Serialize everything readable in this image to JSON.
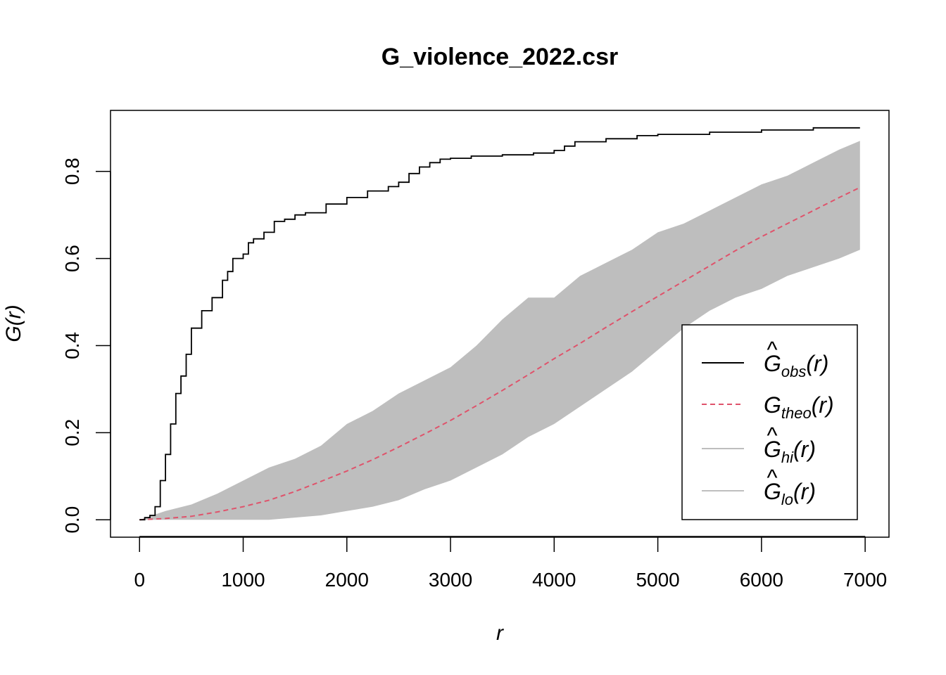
{
  "chart_data": {
    "type": "line",
    "title": "G_violence_2022.csr",
    "xlabel": "r",
    "ylabel": "G(r)",
    "xlim": [
      -280,
      7230
    ],
    "ylim": [
      -0.04,
      0.94
    ],
    "x_ticks": [
      0,
      1000,
      2000,
      3000,
      4000,
      5000,
      6000,
      7000
    ],
    "x_tick_labels": [
      "0",
      "1000",
      "2000",
      "3000",
      "4000",
      "5000",
      "6000",
      "7000"
    ],
    "y_ticks": [
      0.0,
      0.2,
      0.4,
      0.6,
      0.8
    ],
    "y_tick_labels": [
      "0.0",
      "0.2",
      "0.4",
      "0.6",
      "0.8"
    ],
    "grid": false,
    "legend_position": "bottom-right",
    "colors": {
      "obs": "#000000",
      "theo": "#DF536B",
      "envelope": "#BEBEBE"
    },
    "legend": [
      {
        "key": "obs",
        "base": "G",
        "hat": true,
        "sub": "obs",
        "arg": "(r)",
        "color": "#000000",
        "dash": ""
      },
      {
        "key": "theo",
        "base": "G",
        "hat": false,
        "sub": "theo",
        "arg": "(r)",
        "color": "#DF536B",
        "dash": "9,6"
      },
      {
        "key": "hi",
        "base": "G",
        "hat": true,
        "sub": "hi",
        "arg": "(r)",
        "color": "#BEBEBE",
        "dash": ""
      },
      {
        "key": "lo",
        "base": "G",
        "hat": true,
        "sub": "lo",
        "arg": "(r)",
        "color": "#BEBEBE",
        "dash": ""
      }
    ],
    "series": [
      {
        "name": "obs",
        "x": [
          0,
          50,
          100,
          150,
          200,
          250,
          300,
          350,
          400,
          450,
          500,
          600,
          700,
          800,
          850,
          900,
          1000,
          1050,
          1100,
          1200,
          1300,
          1400,
          1500,
          1600,
          1800,
          2000,
          2200,
          2400,
          2500,
          2600,
          2700,
          2800,
          2900,
          3000,
          3200,
          3500,
          3800,
          4000,
          4100,
          4200,
          4500,
          4800,
          5000,
          5500,
          6000,
          6500,
          6950
        ],
        "y": [
          0.0,
          0.005,
          0.01,
          0.03,
          0.09,
          0.15,
          0.22,
          0.29,
          0.33,
          0.38,
          0.44,
          0.48,
          0.51,
          0.55,
          0.57,
          0.6,
          0.61,
          0.636,
          0.645,
          0.66,
          0.685,
          0.69,
          0.7,
          0.705,
          0.725,
          0.74,
          0.755,
          0.765,
          0.775,
          0.795,
          0.81,
          0.82,
          0.828,
          0.83,
          0.835,
          0.838,
          0.842,
          0.848,
          0.858,
          0.868,
          0.875,
          0.882,
          0.885,
          0.89,
          0.895,
          0.9,
          0.9
        ]
      },
      {
        "name": "theo",
        "x": [
          0,
          250,
          500,
          750,
          1000,
          1250,
          1500,
          1750,
          2000,
          2250,
          2500,
          2750,
          3000,
          3250,
          3500,
          3750,
          4000,
          4250,
          4500,
          4750,
          5000,
          5250,
          5500,
          5750,
          6000,
          6250,
          6500,
          6750,
          6950
        ],
        "y": [
          0.0,
          0.003,
          0.008,
          0.018,
          0.03,
          0.045,
          0.065,
          0.088,
          0.112,
          0.138,
          0.167,
          0.197,
          0.228,
          0.262,
          0.297,
          0.333,
          0.37,
          0.405,
          0.442,
          0.478,
          0.513,
          0.548,
          0.583,
          0.618,
          0.65,
          0.68,
          0.71,
          0.74,
          0.763
        ]
      },
      {
        "name": "hi",
        "x": [
          0,
          250,
          500,
          750,
          1000,
          1250,
          1500,
          1750,
          2000,
          2250,
          2500,
          2750,
          3000,
          3250,
          3500,
          3750,
          4000,
          4250,
          4500,
          4750,
          5000,
          5250,
          5500,
          5750,
          6000,
          6250,
          6500,
          6750,
          6950
        ],
        "y": [
          0.0,
          0.02,
          0.035,
          0.06,
          0.09,
          0.12,
          0.14,
          0.17,
          0.22,
          0.25,
          0.29,
          0.32,
          0.35,
          0.4,
          0.46,
          0.51,
          0.51,
          0.56,
          0.59,
          0.62,
          0.66,
          0.68,
          0.71,
          0.74,
          0.77,
          0.79,
          0.82,
          0.85,
          0.87
        ]
      },
      {
        "name": "lo",
        "x": [
          0,
          250,
          500,
          750,
          1000,
          1250,
          1500,
          1750,
          2000,
          2250,
          2500,
          2750,
          3000,
          3250,
          3500,
          3750,
          4000,
          4250,
          4500,
          4750,
          5000,
          5250,
          5500,
          5750,
          6000,
          6250,
          6500,
          6750,
          6950
        ],
        "y": [
          0.0,
          0.0,
          0.0,
          0.0,
          0.0,
          0.0,
          0.005,
          0.01,
          0.02,
          0.03,
          0.045,
          0.07,
          0.09,
          0.12,
          0.15,
          0.19,
          0.22,
          0.26,
          0.3,
          0.34,
          0.39,
          0.44,
          0.48,
          0.51,
          0.53,
          0.56,
          0.58,
          0.6,
          0.62
        ]
      }
    ]
  }
}
